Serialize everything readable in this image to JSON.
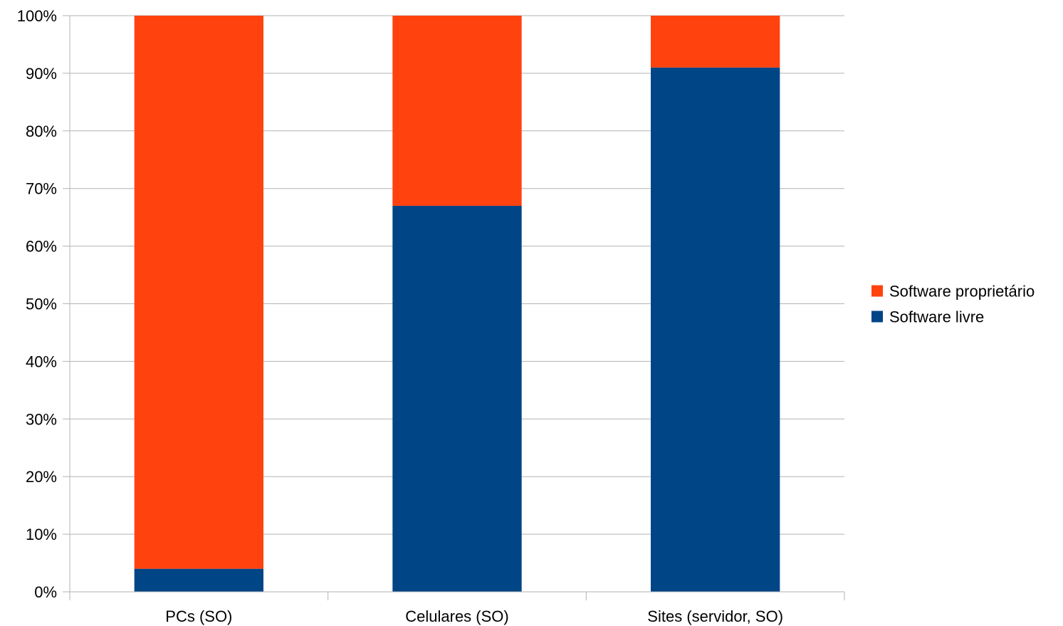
{
  "chart_data": {
    "type": "bar",
    "stacked": true,
    "normalized_percent": true,
    "categories": [
      "PCs (SO)",
      "Celulares (SO)",
      "Sites (servidor, SO)"
    ],
    "series": [
      {
        "name": "Software livre",
        "color": "#004586",
        "values": [
          4,
          67,
          91
        ]
      },
      {
        "name": "Software proprietário",
        "color": "#ff420e",
        "values": [
          96,
          33,
          9
        ]
      }
    ],
    "y_ticks": [
      "0%",
      "10%",
      "20%",
      "30%",
      "40%",
      "50%",
      "60%",
      "70%",
      "80%",
      "90%",
      "100%"
    ],
    "ylim": [
      0,
      100
    ],
    "y_unit": "%",
    "grid": true,
    "legend": {
      "placement": "right",
      "entries": [
        "Software proprietário",
        "Software livre"
      ]
    },
    "title": "",
    "xlabel": "",
    "ylabel": ""
  }
}
